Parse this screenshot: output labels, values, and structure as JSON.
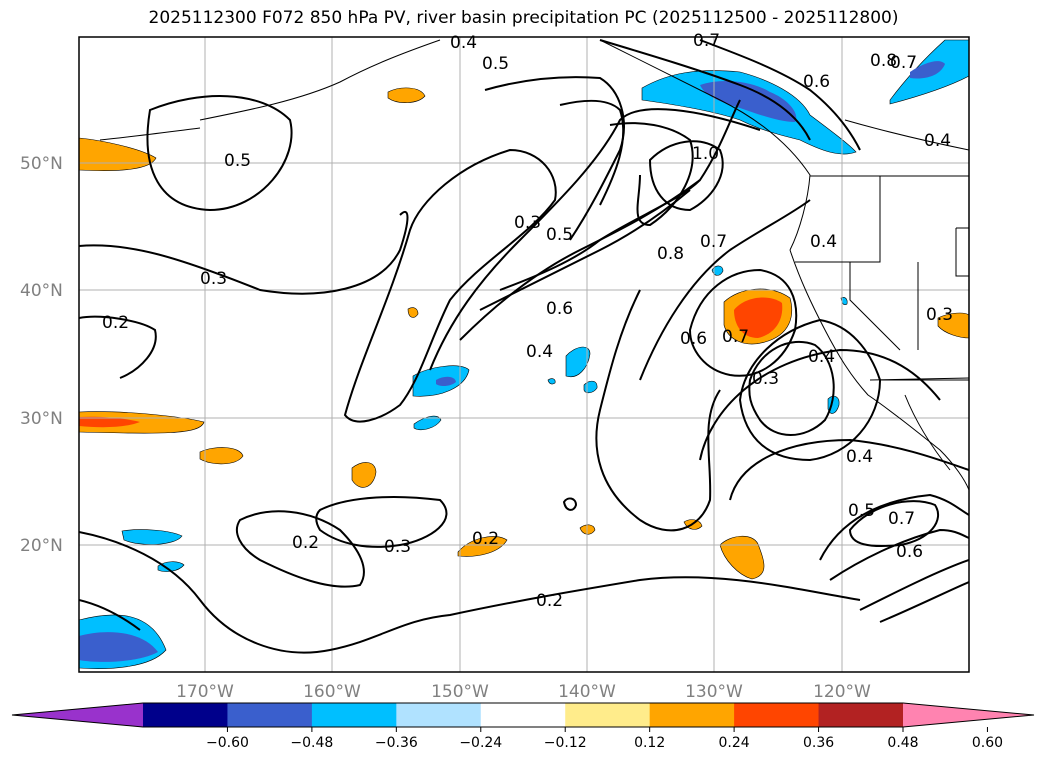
{
  "title": "2025112300 F072 850 hPa PV, river basin precipitation PC (2025112500 - 2025112800)",
  "lat_labels": [
    "50°N",
    "40°N",
    "30°N",
    "20°N"
  ],
  "lon_labels": [
    "170°W",
    "160°W",
    "150°W",
    "140°W",
    "130°W",
    "120°W"
  ],
  "contour_labels": [
    "0.4",
    "0.5",
    "0.7",
    "0.6",
    "0.8",
    "0.7",
    "0.4",
    "0.5",
    "0.3",
    "0.2",
    "0.3",
    "0.5",
    "1.0",
    "0.4",
    "0.8",
    "0.7",
    "0.6",
    "0.4",
    "0.6",
    "0.7",
    "0.3",
    "0.4",
    "0.3",
    "0.4",
    "0.5",
    "0.7",
    "0.6",
    "0.2",
    "0.3",
    "0.2",
    "0.2"
  ],
  "colorbar": {
    "colors": [
      "#9932cc",
      "#00008b",
      "#3a5fcd",
      "#00bfff",
      "#b0e2ff",
      "#ffffff",
      "#ffec8b",
      "#ffa500",
      "#ff4500",
      "#b22222",
      "#ff83b0"
    ],
    "tick_labels": [
      "−0.60",
      "−0.48",
      "−0.36",
      "−0.24",
      "−0.12",
      "0.12",
      "0.24",
      "0.36",
      "0.48",
      "0.60"
    ]
  }
}
